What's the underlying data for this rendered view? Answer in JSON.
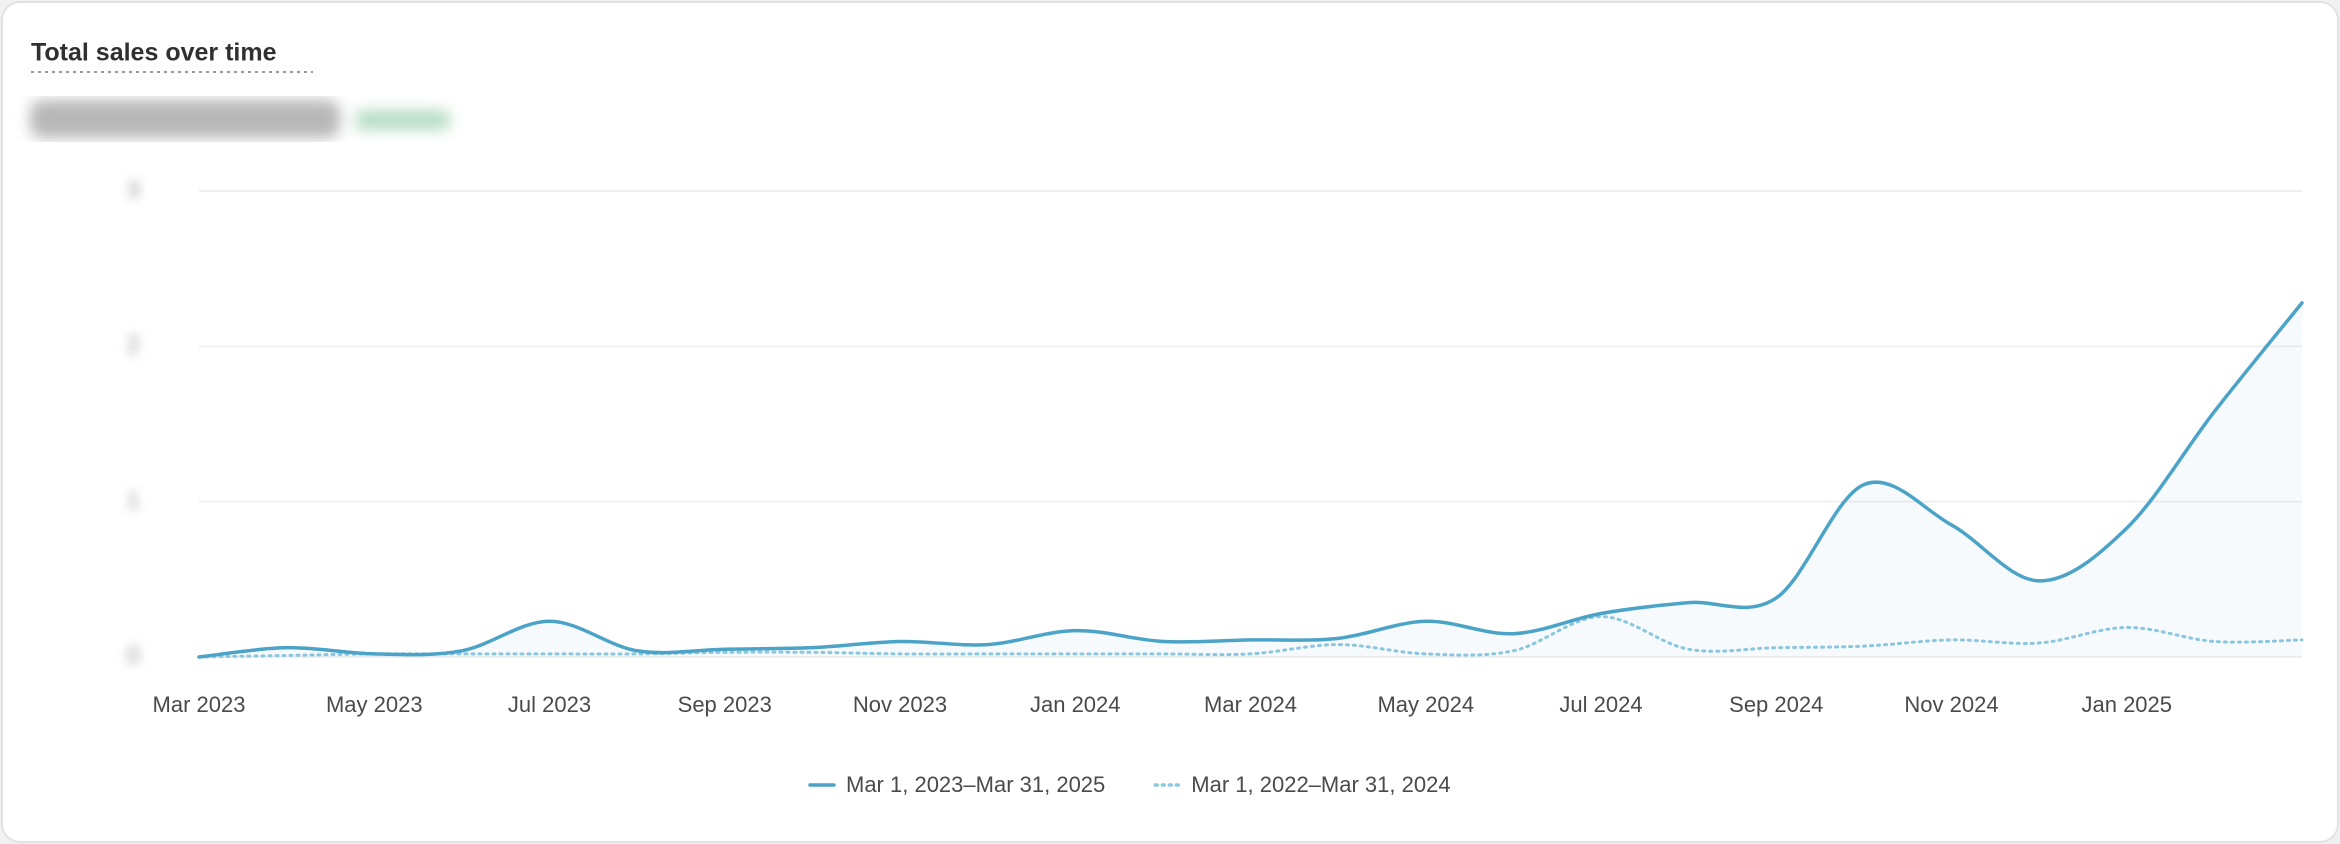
{
  "chart_data": {
    "type": "line",
    "title": "Total sales over time",
    "categories": [
      "Mar 2023",
      null,
      "May 2023",
      null,
      "Jul 2023",
      null,
      "Sep 2023",
      null,
      "Nov 2023",
      null,
      "Jan 2024",
      null,
      "Mar 2024",
      null,
      "May 2024",
      null,
      "Jul 2024",
      null,
      "Sep 2024",
      null,
      "Nov 2024",
      null,
      "Jan 2025",
      null,
      null
    ],
    "series": [
      {
        "name": "Mar 1, 2023–Mar 31, 2025",
        "color": "#4ba3c7",
        "style": "solid",
        "values": [
          0.0,
          0.06,
          0.02,
          0.04,
          0.23,
          0.04,
          0.05,
          0.06,
          0.1,
          0.08,
          0.17,
          0.1,
          0.11,
          0.12,
          0.23,
          0.15,
          0.28,
          0.35,
          0.38,
          1.11,
          0.85,
          0.49,
          0.83,
          1.58,
          2.28
        ]
      },
      {
        "name": "Mar 1, 2022–Mar 31, 2024",
        "color": "#8ec9df",
        "style": "dotted",
        "values": [
          0.0,
          0.01,
          0.02,
          0.02,
          0.02,
          0.02,
          0.03,
          0.03,
          0.02,
          0.02,
          0.02,
          0.02,
          0.02,
          0.08,
          0.02,
          0.04,
          0.26,
          0.05,
          0.06,
          0.07,
          0.11,
          0.09,
          0.19,
          0.1,
          0.11
        ]
      }
    ],
    "ylim": [
      0,
      3
    ],
    "yticks": [
      0,
      1,
      2,
      3
    ],
    "grid": true
  }
}
